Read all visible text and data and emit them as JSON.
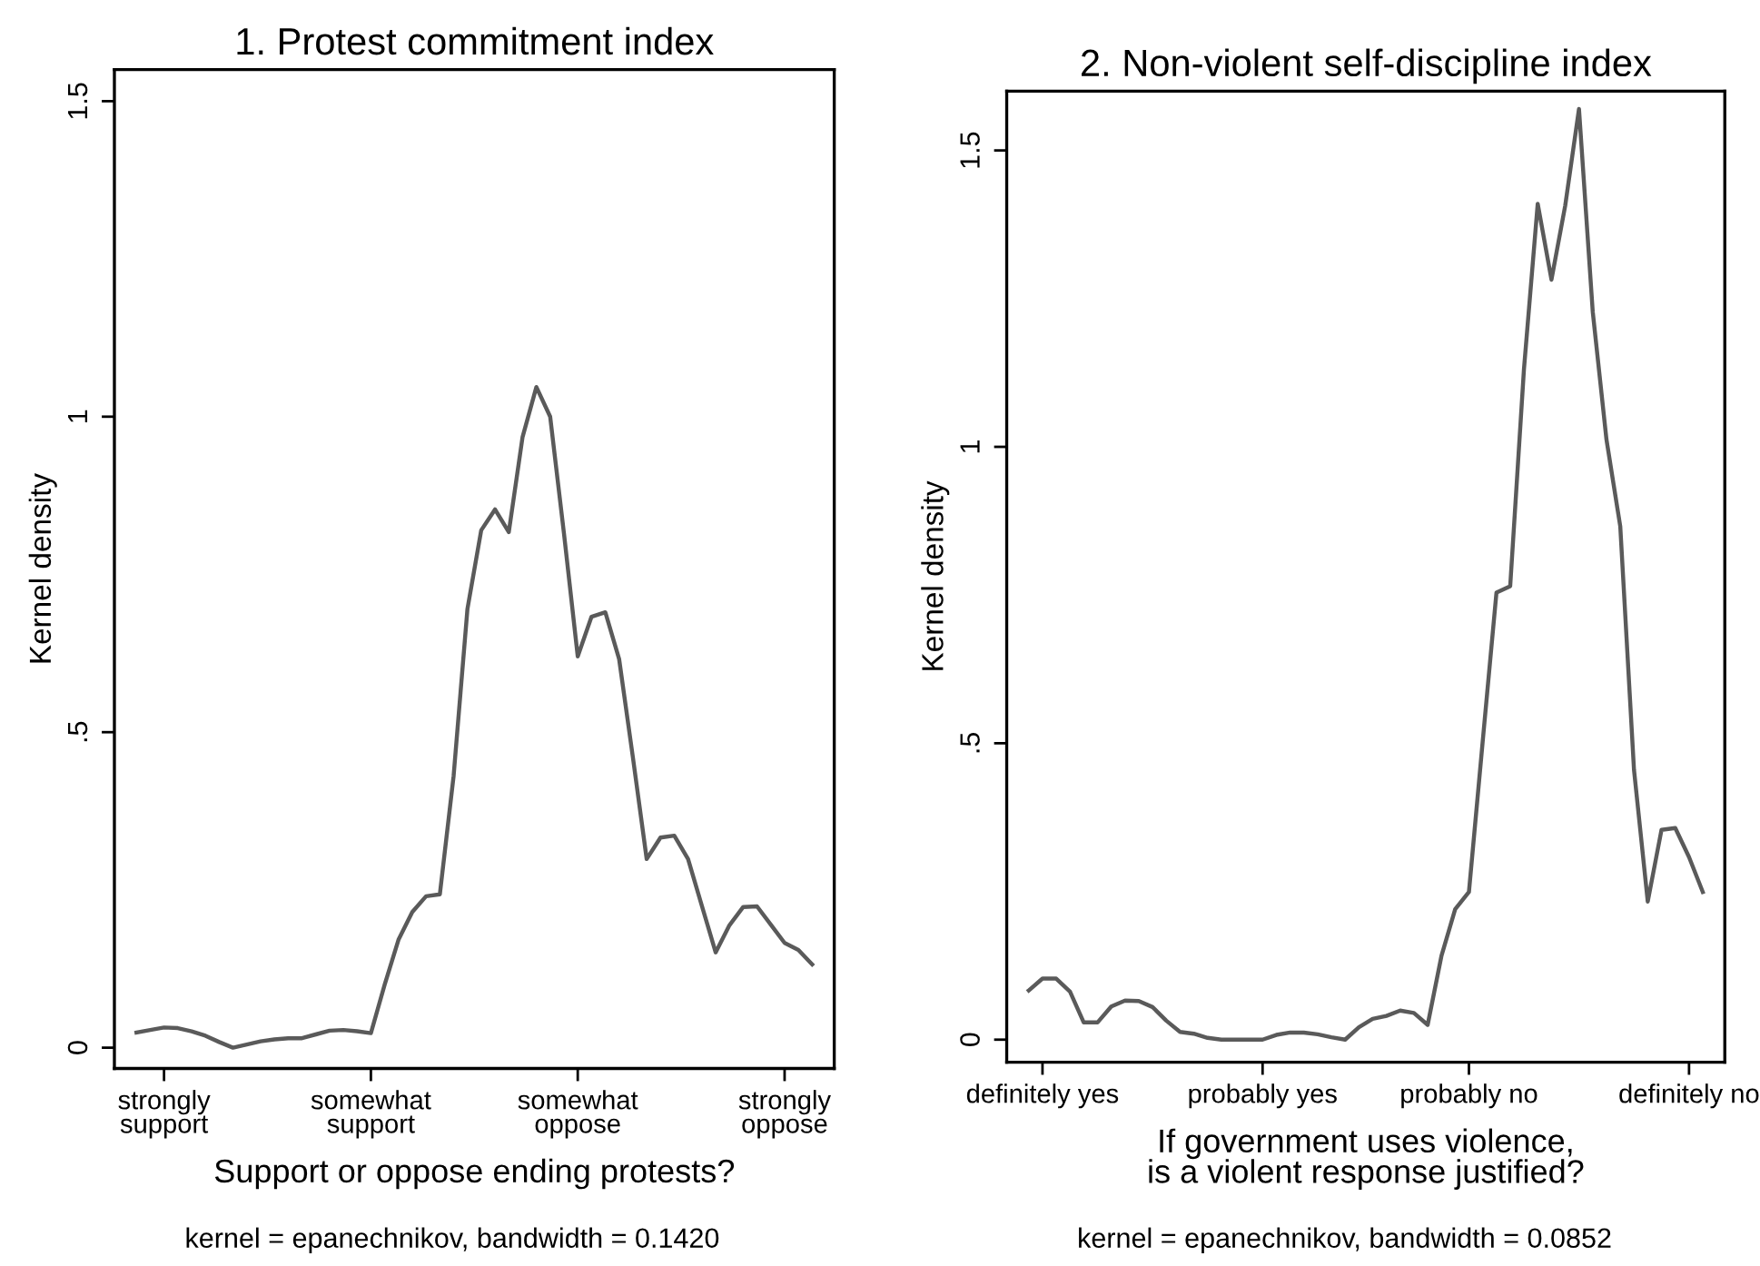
{
  "chart_data": [
    {
      "type": "line",
      "title": "1. Protest commitment index",
      "xlabel": "Support or oppose ending protests?",
      "ylabel": "Kernel density",
      "annotations": [
        "kernel = epanechnikov, bandwidth = 0.1420"
      ],
      "categories": [
        null,
        null,
        "strongly\nsupport",
        null,
        null,
        null,
        null,
        null,
        null,
        null,
        null,
        null,
        null,
        null,
        null,
        null,
        null,
        "somewhat\nsupport",
        null,
        null,
        null,
        null,
        null,
        null,
        null,
        null,
        null,
        null,
        null,
        null,
        null,
        null,
        "somewhat\noppose",
        null,
        null,
        null,
        null,
        null,
        null,
        null,
        null,
        null,
        null,
        null,
        null,
        null,
        null,
        "strongly\noppose",
        null,
        null
      ],
      "ylim": [
        -0.033,
        1.55
      ],
      "yticks": [
        {
          "value": 0,
          "label": "0"
        },
        {
          "value": 0.5,
          "label": ".5"
        },
        {
          "value": 1,
          "label": "1"
        },
        {
          "value": 1.5,
          "label": "1.5"
        }
      ],
      "grid": false,
      "marker": "none",
      "line_style": "solid",
      "series": [
        {
          "color": "#5a5a5a",
          "values": [
            0.024,
            0.028,
            0.032,
            0.031,
            0.026,
            0.019,
            0.009,
            0.0,
            0.005,
            0.01,
            0.013,
            0.015,
            0.015,
            0.021,
            0.027,
            0.028,
            0.026,
            0.023,
            0.1,
            0.171,
            0.215,
            0.24,
            0.243,
            0.431,
            0.695,
            0.82,
            0.853,
            0.817,
            0.968,
            1.047,
            1.0,
            0.815,
            0.62,
            0.683,
            0.69,
            0.616,
            0.46,
            0.299,
            0.333,
            0.336,
            0.299,
            0.225,
            0.151,
            0.194,
            0.223,
            0.224,
            0.195,
            0.166,
            0.155,
            0.132
          ]
        }
      ]
    },
    {
      "type": "line",
      "title": "2. Non-violent self-discipline index",
      "xlabel": "If government uses violence,\nis a violent response justified?",
      "ylabel": "Kernel density",
      "annotations": [
        "kernel = epanechnikov, bandwidth = 0.0852"
      ],
      "categories": [
        null,
        "definitely yes",
        null,
        null,
        null,
        null,
        null,
        null,
        null,
        null,
        null,
        null,
        null,
        null,
        null,
        null,
        null,
        "probably yes",
        null,
        null,
        null,
        null,
        null,
        null,
        null,
        null,
        null,
        null,
        null,
        null,
        null,
        null,
        "probably no",
        null,
        null,
        null,
        null,
        null,
        null,
        null,
        null,
        null,
        null,
        null,
        null,
        null,
        null,
        null,
        "definitely no",
        null
      ],
      "ylim": [
        -0.038,
        1.6
      ],
      "yticks": [
        {
          "value": 0,
          "label": "0"
        },
        {
          "value": 0.5,
          "label": ".5"
        },
        {
          "value": 1,
          "label": "1"
        },
        {
          "value": 1.5,
          "label": "1.5"
        }
      ],
      "grid": false,
      "marker": "none",
      "line_style": "solid",
      "series": [
        {
          "color": "#5a5a5a",
          "values": [
            0.083,
            0.103,
            0.103,
            0.081,
            0.029,
            0.029,
            0.056,
            0.066,
            0.065,
            0.055,
            0.032,
            0.013,
            0.01,
            0.003,
            0.0,
            0.0,
            0.0,
            0.0,
            0.008,
            0.012,
            0.012,
            0.009,
            0.004,
            0.0,
            0.021,
            0.035,
            0.04,
            0.049,
            0.045,
            0.025,
            0.141,
            0.22,
            0.249,
            0.503,
            0.754,
            0.765,
            1.131,
            1.41,
            1.282,
            1.407,
            1.57,
            1.228,
            1.012,
            0.866,
            0.455,
            0.233,
            0.354,
            0.357,
            0.308,
            0.249
          ]
        }
      ]
    }
  ]
}
